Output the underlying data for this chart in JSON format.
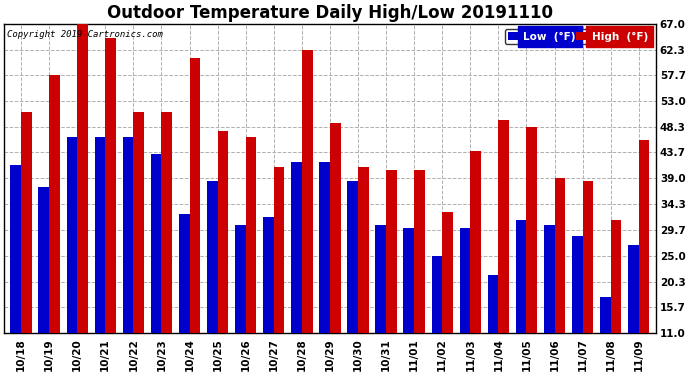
{
  "title": "Outdoor Temperature Daily High/Low 20191110",
  "copyright": "Copyright 2019 Cartronics.com",
  "dates": [
    "10/18",
    "10/19",
    "10/20",
    "10/21",
    "10/22",
    "10/23",
    "10/24",
    "10/25",
    "10/26",
    "10/27",
    "10/28",
    "10/29",
    "10/30",
    "10/31",
    "11/01",
    "11/02",
    "11/03",
    "11/04",
    "11/05",
    "11/06",
    "11/07",
    "11/08",
    "11/09"
  ],
  "highs": [
    51.0,
    57.7,
    67.0,
    64.5,
    51.0,
    51.0,
    60.8,
    47.5,
    46.5,
    41.0,
    62.3,
    49.0,
    41.0,
    40.5,
    40.5,
    33.0,
    44.0,
    49.5,
    48.3,
    39.0,
    38.5,
    31.5,
    46.0
  ],
  "lows": [
    41.5,
    37.5,
    46.5,
    46.5,
    46.5,
    43.5,
    32.5,
    38.5,
    30.5,
    32.0,
    42.0,
    42.0,
    38.5,
    30.5,
    30.0,
    25.0,
    30.0,
    21.5,
    31.5,
    30.5,
    28.5,
    17.5,
    27.0
  ],
  "low_color": "#0000cc",
  "high_color": "#cc0000",
  "bg_color": "#ffffff",
  "grid_color": "#b0b0b0",
  "yticks": [
    11.0,
    15.7,
    20.3,
    25.0,
    29.7,
    34.3,
    39.0,
    43.7,
    48.3,
    53.0,
    57.7,
    62.3,
    67.0
  ],
  "ylim": [
    11.0,
    67.0
  ],
  "title_fontsize": 12,
  "legend_low_label": "Low  (°F)",
  "legend_high_label": "High  (°F)"
}
